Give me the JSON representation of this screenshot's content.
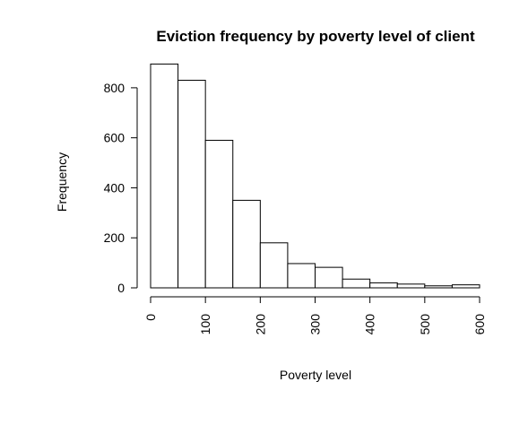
{
  "chart_data": {
    "type": "bar",
    "subtype": "histogram",
    "title": "Eviction frequency by poverty level of client",
    "xlabel": "Poverty level",
    "ylabel": "Frequency",
    "bin_edges": [
      0,
      50,
      100,
      150,
      200,
      250,
      300,
      350,
      400,
      450,
      500,
      550,
      600
    ],
    "values": [
      895,
      830,
      590,
      350,
      180,
      97,
      82,
      35,
      20,
      15,
      8,
      12
    ],
    "xlim": [
      0,
      600
    ],
    "ylim": [
      0,
      900
    ],
    "x_ticks": [
      "0",
      "100",
      "200",
      "300",
      "400",
      "500",
      "600"
    ],
    "y_ticks": [
      "0",
      "200",
      "400",
      "600",
      "800"
    ],
    "x_tick_values": [
      0,
      100,
      200,
      300,
      400,
      500,
      600
    ],
    "y_tick_values": [
      0,
      200,
      400,
      600,
      800
    ],
    "grid": false,
    "legend": "none",
    "bar_fill": "#ffffff",
    "stroke_color": "#000000"
  }
}
